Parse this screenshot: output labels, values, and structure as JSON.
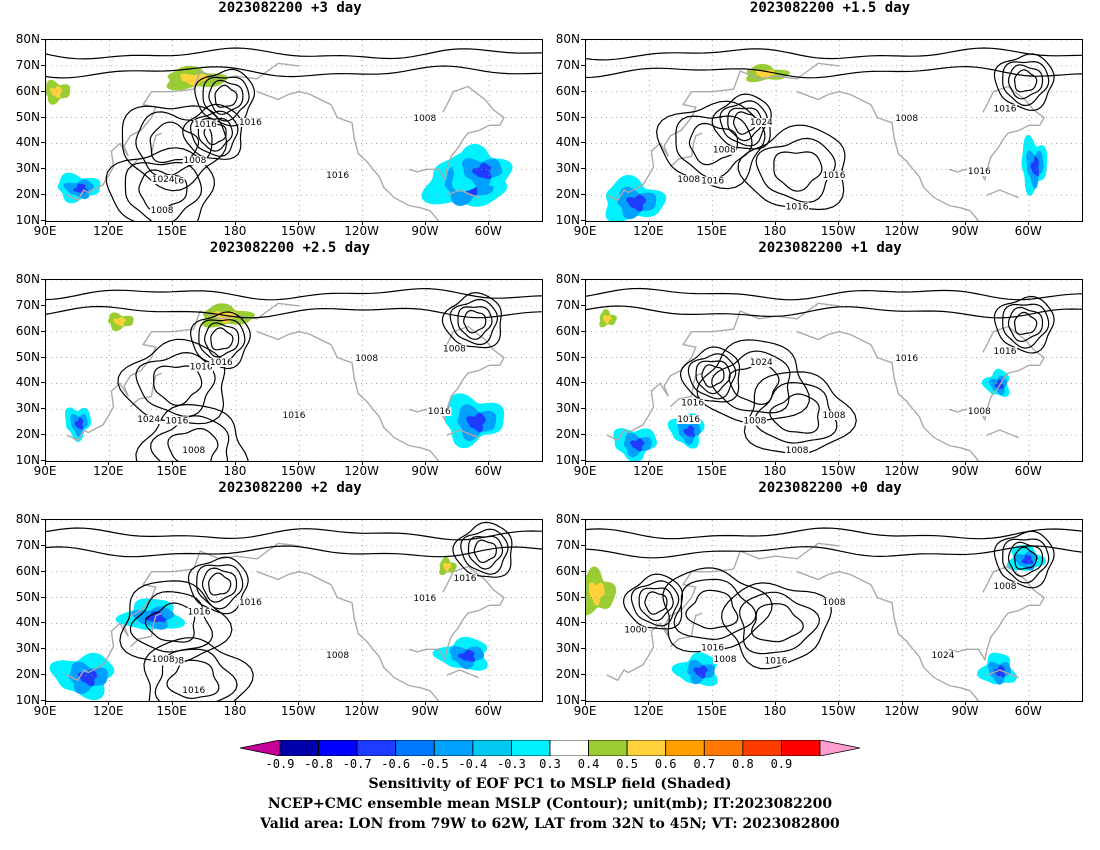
{
  "panels": [
    {
      "id": "p0",
      "title": "2023082200  +3 day",
      "lows": [
        [
          175,
          58
        ],
        [
          170,
          44
        ]
      ],
      "highs": [
        [
          150,
          40
        ],
        [
          145,
          22
        ]
      ],
      "shade_neg": [
        [
          -72,
          25,
          18,
          10
        ],
        [
          -65,
          30,
          14,
          8
        ],
        [
          105,
          23,
          10,
          5
        ]
      ],
      "shade_pos": [
        [
          160,
          65,
          14,
          4
        ],
        [
          95,
          60,
          6,
          4
        ]
      ]
    },
    {
      "id": "p1",
      "title": "2023082200  +1.5 day",
      "lows": [
        [
          -62,
          64
        ],
        [
          165,
          48
        ]
      ],
      "highs": [
        [
          150,
          40
        ],
        [
          190,
          30
        ]
      ],
      "shade_neg": [
        [
          112,
          18,
          14,
          8
        ],
        [
          -58,
          32,
          6,
          10
        ]
      ],
      "shade_pos": [
        [
          175,
          67,
          10,
          3
        ]
      ]
    },
    {
      "id": "p2",
      "title": "2023082200  +2.5 day",
      "lows": [
        [
          173,
          57
        ],
        [
          -67,
          64
        ]
      ],
      "highs": [
        [
          152,
          40
        ],
        [
          160,
          15
        ]
      ],
      "shade_neg": [
        [
          -68,
          26,
          14,
          9
        ],
        [
          105,
          25,
          6,
          6
        ]
      ],
      "shade_pos": [
        [
          175,
          66,
          12,
          4
        ],
        [
          125,
          64,
          6,
          3
        ]
      ]
    },
    {
      "id": "p3",
      "title": "2023082200  +1 day",
      "lows": [
        [
          -62,
          63
        ],
        [
          150,
          43
        ]
      ],
      "highs": [
        [
          170,
          40
        ],
        [
          190,
          28
        ]
      ],
      "shade_neg": [
        [
          113,
          17,
          10,
          6
        ],
        [
          138,
          22,
          8,
          6
        ],
        [
          -75,
          40,
          6,
          5
        ]
      ],
      "shade_pos": [
        [
          100,
          65,
          4,
          3
        ]
      ]
    },
    {
      "id": "p4",
      "title": "2023082200  +2 day",
      "lows": [
        [
          172,
          55
        ],
        [
          -62,
          68
        ]
      ],
      "highs": [
        [
          150,
          40
        ],
        [
          160,
          18
        ]
      ],
      "shade_neg": [
        [
          108,
          20,
          14,
          8
        ],
        [
          -72,
          28,
          12,
          6
        ],
        [
          140,
          43,
          14,
          6
        ]
      ],
      "shade_pos": [
        [
          -80,
          62,
          4,
          3
        ]
      ]
    },
    {
      "id": "p5",
      "title": "2023082200  +0 day",
      "lows": [
        [
          -62,
          65
        ],
        [
          123,
          48
        ]
      ],
      "highs": [
        [
          150,
          45
        ],
        [
          180,
          40
        ]
      ],
      "shade_neg": [
        [
          143,
          22,
          10,
          6
        ],
        [
          -75,
          22,
          8,
          6
        ],
        [
          -62,
          65,
          8,
          5
        ]
      ],
      "shade_pos": [
        [
          95,
          52,
          8,
          8
        ]
      ]
    }
  ],
  "contour_labels": [
    [
      "1016",
      "1008",
      "1016",
      "1008",
      "1024",
      "1016",
      "1016",
      "1008"
    ],
    [
      "1016",
      "1008",
      "1016",
      "1016",
      "1008",
      "1024",
      "1016",
      "1008",
      "1016"
    ],
    [
      "1016",
      "1008",
      "1016",
      "1008",
      "1024",
      "1016",
      "1016",
      "1008",
      "1016"
    ],
    [
      "1016",
      "1016",
      "1008",
      "1008",
      "1016",
      "1024",
      "1008",
      "1016",
      "1008"
    ],
    [
      "1016",
      "1016",
      "1008",
      "1016",
      "1008",
      "1016",
      "1008",
      "1016"
    ],
    [
      "1008",
      "1000",
      "1016",
      "1016",
      "1008",
      "1008",
      "1024"
    ]
  ],
  "axes": {
    "lat_labels": [
      "80N",
      "70N",
      "60N",
      "50N",
      "40N",
      "30N",
      "20N",
      "10N"
    ],
    "lon_labels": [
      "90E",
      "120E",
      "150E",
      "180",
      "150W",
      "120W",
      "90W",
      "60W"
    ],
    "lat_values": [
      80,
      70,
      60,
      50,
      40,
      30,
      20,
      10
    ],
    "lon_values": [
      90,
      120,
      150,
      180,
      210,
      240,
      270,
      300
    ],
    "lon_range": [
      90,
      325
    ],
    "lat_range": [
      10,
      80
    ]
  },
  "colorbar": {
    "labels": [
      "-0.9",
      "-0.8",
      "-0.7",
      "-0.6",
      "-0.5",
      "-0.4",
      "-0.3",
      "0.3",
      "0.4",
      "0.5",
      "0.6",
      "0.7",
      "0.8",
      "0.9"
    ],
    "colors": [
      "#0000aa",
      "#0000ff",
      "#1e3cff",
      "#0078ff",
      "#00a0ff",
      "#00c8f0",
      "#00f0ff",
      "#ffffff",
      "#9acd32",
      "#ffd23c",
      "#ffa000",
      "#ff7800",
      "#ff3c00",
      "#ff0000"
    ],
    "under_color": "#c8009a",
    "over_color": "#ff9ecf"
  },
  "caption": {
    "line1": "Sensitivity of EOF PC1 to MSLP field (Shaded)",
    "line2": "NCEP+CMC ensemble mean MSLP (Contour); unit(mb); IT:2023082200",
    "line3": "Valid area: LON from 79W to 62W, LAT from 32N to 45N; VT: 2023082800"
  }
}
